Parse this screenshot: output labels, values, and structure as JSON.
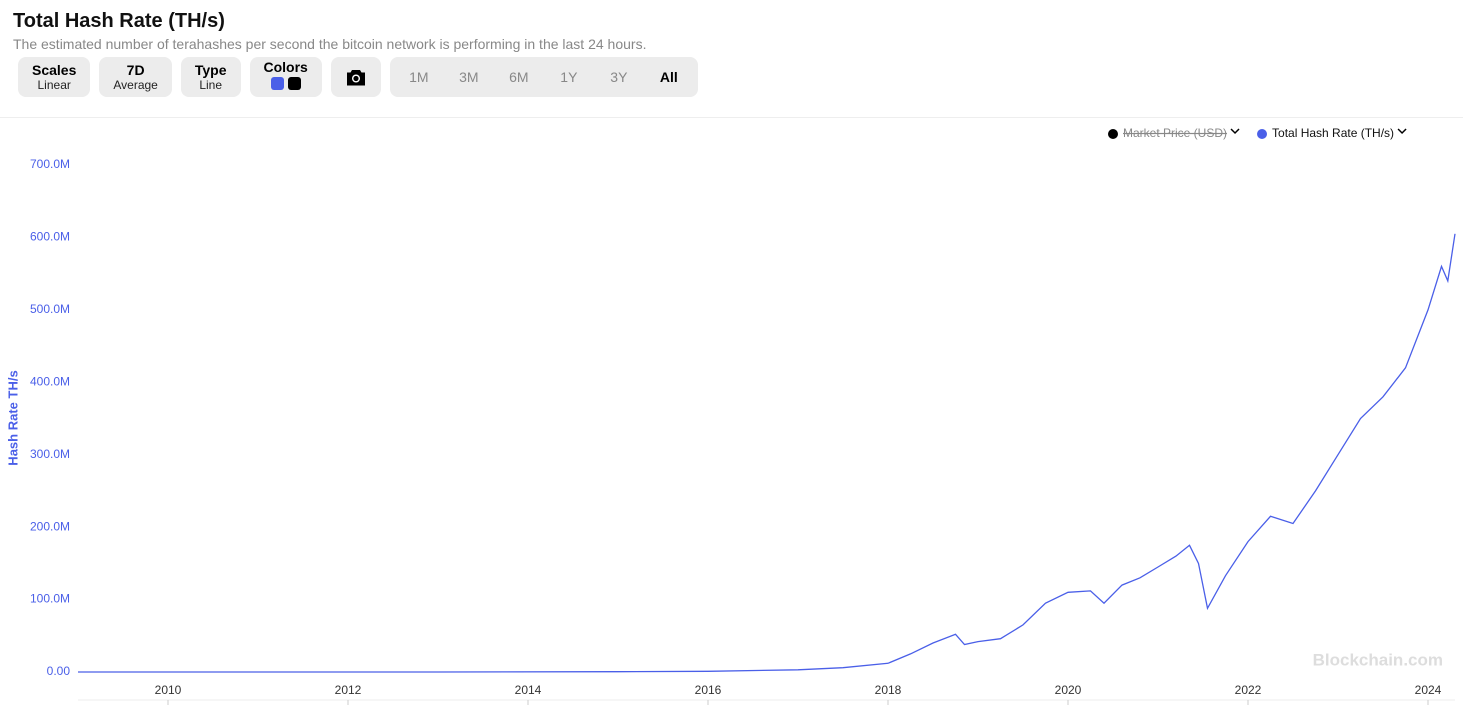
{
  "chart_data": {
    "type": "line",
    "title": "Total Hash Rate (TH/s)",
    "subtitle": "The estimated number of terahashes per second the bitcoin network is performing in the last 24 hours.",
    "ylabel": "Hash Rate TH/s",
    "x": [
      2009.0,
      2013.0,
      2015.0,
      2016.0,
      2017.0,
      2017.5,
      2018.0,
      2018.25,
      2018.5,
      2018.75,
      2018.85,
      2019.0,
      2019.25,
      2019.5,
      2019.75,
      2020.0,
      2020.25,
      2020.4,
      2020.6,
      2020.8,
      2021.0,
      2021.2,
      2021.35,
      2021.45,
      2021.55,
      2021.75,
      2022.0,
      2022.25,
      2022.5,
      2022.75,
      2023.0,
      2023.25,
      2023.5,
      2023.75,
      2024.0,
      2024.15,
      2024.22,
      2024.3
    ],
    "series": [
      {
        "name": "Total Hash Rate (TH/s)",
        "color": "#4a5fe8",
        "values": [
          0,
          20000,
          400000,
          1000000,
          3000000,
          6000000,
          12000000,
          25000000,
          40000000,
          52000000,
          38000000,
          42000000,
          46000000,
          65000000,
          95000000,
          110000000,
          112000000,
          95000000,
          120000000,
          130000000,
          145000000,
          160000000,
          175000000,
          150000000,
          88000000,
          133000000,
          180000000,
          215000000,
          205000000,
          250000000,
          300000000,
          350000000,
          380000000,
          420000000,
          500000000,
          560000000,
          540000000,
          605000000
        ]
      }
    ],
    "hidden_series": [
      {
        "name": "Market Price (USD)",
        "color": "#000000"
      }
    ],
    "xlim": [
      2009.0,
      2024.3
    ],
    "xticks": [
      2010,
      2012,
      2014,
      2016,
      2018,
      2020,
      2022,
      2024
    ],
    "ylim": [
      0,
      700000000
    ],
    "yticks": [
      {
        "value": 0,
        "label": "0.00"
      },
      {
        "value": 100000000,
        "label": "100.0M"
      },
      {
        "value": 200000000,
        "label": "200.0M"
      },
      {
        "value": 300000000,
        "label": "300.0M"
      },
      {
        "value": 400000000,
        "label": "400.0M"
      },
      {
        "value": 500000000,
        "label": "500.0M"
      },
      {
        "value": 600000000,
        "label": "600.0M"
      },
      {
        "value": 700000000,
        "label": "700.0M"
      }
    ],
    "grid": false,
    "watermark": "Blockchain.com"
  },
  "toolbar": {
    "buttons": [
      {
        "label": "Scales",
        "sub": "Linear"
      },
      {
        "label": "7D",
        "sub": "Average"
      },
      {
        "label": "Type",
        "sub": "Line"
      }
    ],
    "colors": {
      "label": "Colors",
      "swatches": [
        "#4a5fe8",
        "#000000"
      ]
    },
    "ranges": [
      "1M",
      "3M",
      "6M",
      "1Y",
      "3Y",
      "All"
    ],
    "active_range": "All"
  }
}
